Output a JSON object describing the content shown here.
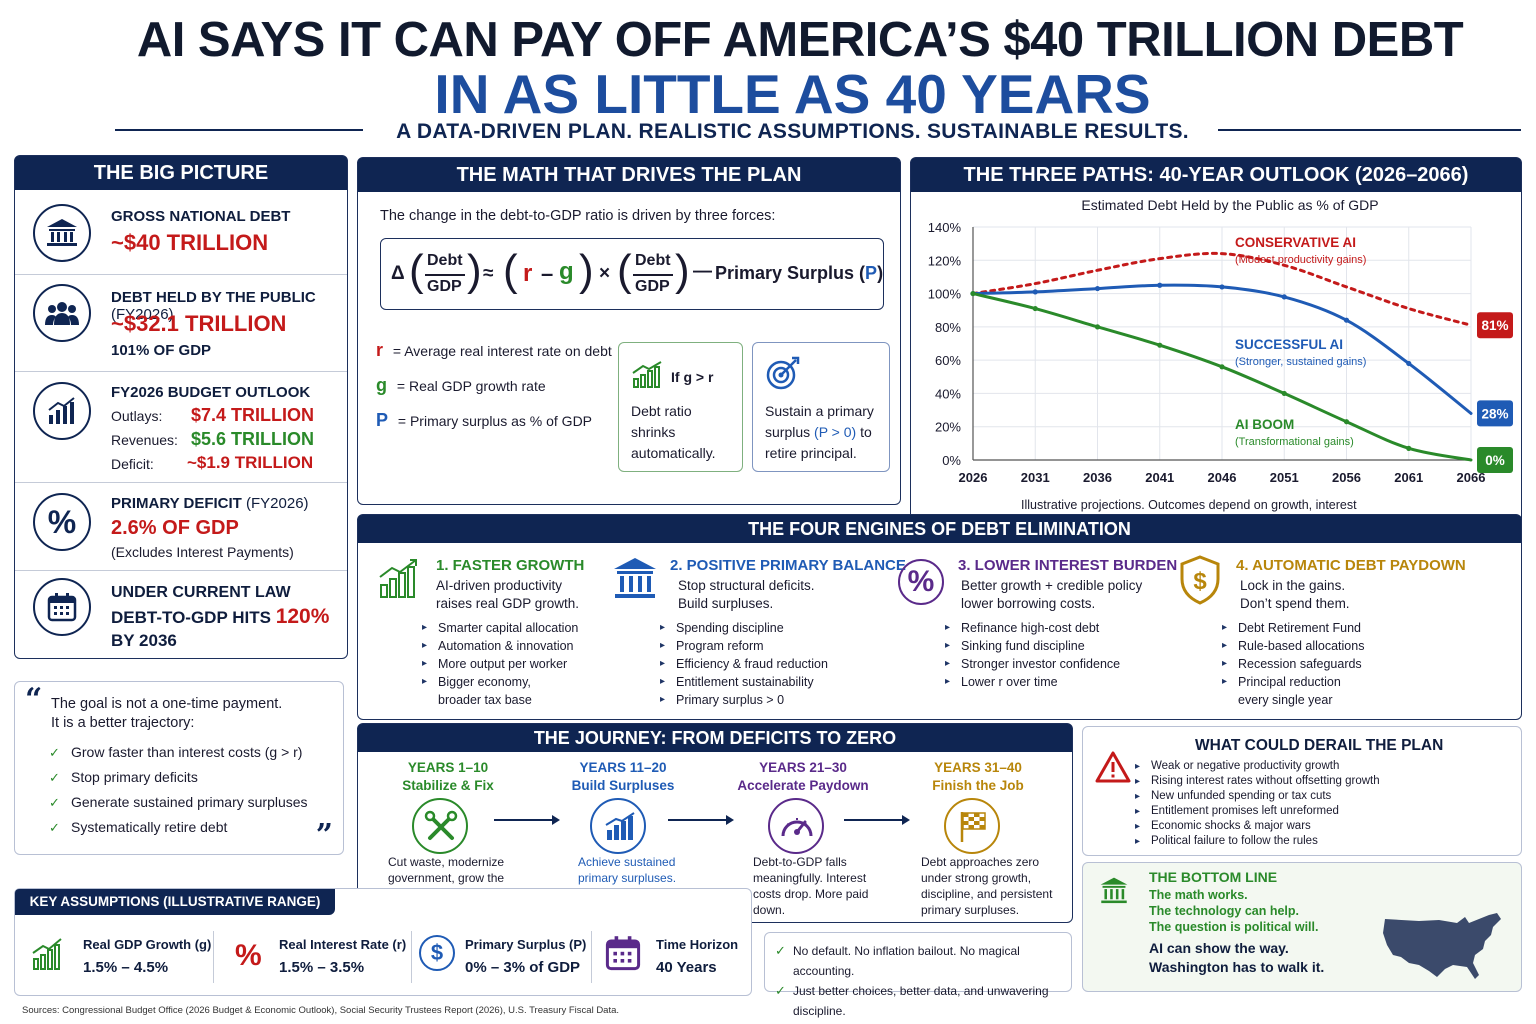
{
  "headline": {
    "line1": "AI SAYS IT CAN PAY OFF AMERICA’S $40 TRILLION DEBT",
    "line2": "IN AS LITTLE AS 40 YEARS",
    "tagline": "A DATA-DRIVEN PLAN.  REALISTIC ASSUMPTIONS.  SUSTAINABLE RESULTS."
  },
  "big_picture": {
    "header": "THE BIG PICTURE",
    "gross": {
      "title": "GROSS NATIONAL DEBT",
      "value": "~$40 TRILLION"
    },
    "public": {
      "title": "DEBT HELD BY THE PUBLIC",
      "title_suffix": "(FY2026)",
      "value": "~$32.1 TRILLION",
      "sub": "101% OF GDP"
    },
    "budget": {
      "title": "FY2026 BUDGET OUTLOOK",
      "outlays_label": "Outlays:",
      "outlays": "$7.4 TRILLION",
      "revenues_label": "Revenues:",
      "revenues": "$5.6 TRILLION",
      "deficit_label": "Deficit:",
      "deficit": "~$1.9 TRILLION"
    },
    "primary": {
      "title": "PRIMARY DEFICIT",
      "title_suffix": "(FY2026)",
      "value": "2.6% OF GDP",
      "sub": "(Excludes Interest Payments)"
    },
    "law": {
      "title": "UNDER CURRENT LAW",
      "line2a": "DEBT-TO-GDP HITS",
      "line2b": "120%",
      "line3": "BY 2036"
    }
  },
  "quote": {
    "line1": "The goal is not a one-time payment.",
    "line2": "It is a better trajectory:",
    "items": [
      "Grow faster than interest costs (g > r)",
      "Stop primary deficits",
      "Generate sustained primary surpluses",
      "Systematically retire debt"
    ]
  },
  "math": {
    "header": "THE MATH THAT DRIVES THE PLAN",
    "intro": "The change in the debt-to-GDP ratio is driven by three forces:",
    "formula": {
      "delta": "Δ",
      "debt": "Debt",
      "gdp": "GDP",
      "approx": "≈",
      "r": "r",
      "minus": "–",
      "g": "g",
      "times": "×",
      "dash": "—",
      "ps": "Primary Surplus (",
      "p": "P",
      "close": ")"
    },
    "defs": [
      {
        "sym": "r",
        "text": "= Average real interest rate on debt"
      },
      {
        "sym": "g",
        "text": "= Real GDP growth rate"
      },
      {
        "sym": "P",
        "text": "= Primary surplus as % of GDP"
      }
    ],
    "box1": {
      "title": "If g > r",
      "text": "Debt ratio shrinks automatically."
    },
    "box2": {
      "text_a": "Sustain a primary surplus ",
      "text_b": "(P > 0)",
      "text_c": " to retire principal."
    }
  },
  "paths": {
    "header": "THE THREE PATHS: 40-YEAR OUTLOOK (2026–2066)",
    "note": "Illustrative projections. Outcomes depend on growth, interest rates, policy choices, and fiscal discipline."
  },
  "chart_data": {
    "type": "line",
    "title": "Estimated Debt Held by the Public as % of GDP",
    "x": [
      2026,
      2031,
      2036,
      2041,
      2046,
      2051,
      2056,
      2061,
      2066
    ],
    "ylim": [
      0,
      140
    ],
    "yticks": [
      "0%",
      "20%",
      "40%",
      "60%",
      "80%",
      "100%",
      "120%",
      "140%"
    ],
    "grid": true,
    "series": [
      {
        "name": "CONSERVATIVE AI",
        "note": "(Modest productivity gains)",
        "color": "#c41a1a",
        "dashed": true,
        "end_label": "81%",
        "values": [
          100,
          106,
          114,
          121,
          124,
          117,
          104,
          91,
          81
        ]
      },
      {
        "name": "SUCCESSFUL AI",
        "note": "(Stronger, sustained gains)",
        "color": "#1f5bb5",
        "dashed": false,
        "end_label": "28%",
        "values": [
          100,
          101,
          103,
          105,
          104,
          98,
          84,
          58,
          28
        ]
      },
      {
        "name": "AI BOOM",
        "note": "(Transformational gains)",
        "color": "#2a8a2a",
        "dashed": false,
        "end_label": "0%",
        "values": [
          100,
          91,
          80,
          69,
          56,
          40,
          23,
          7,
          0
        ]
      }
    ]
  },
  "engines": {
    "header": "THE FOUR ENGINES OF DEBT ELIMINATION",
    "items": [
      {
        "title": "1. FASTER GROWTH",
        "desc": "AI-driven productivity raises real GDP growth.",
        "bullets": [
          "Smarter capital allocation",
          "Automation & innovation",
          "More output per worker",
          "Bigger economy, broader tax base"
        ],
        "color": "#2a8a2a"
      },
      {
        "title": "2. POSITIVE PRIMARY BALANCE",
        "desc": "Stop structural deficits. Build surpluses.",
        "bullets": [
          "Spending discipline",
          "Program reform",
          "Efficiency & fraud reduction",
          "Entitlement sustainability",
          "Primary surplus > 0"
        ],
        "color": "#1f5bb5"
      },
      {
        "title": "3. LOWER INTEREST BURDEN",
        "desc": "Better growth + credible policy lower borrowing costs.",
        "bullets": [
          "Refinance high-cost debt",
          "Sinking fund discipline",
          "Stronger investor confidence",
          "Lower r over time"
        ],
        "color": "#5a2a8a"
      },
      {
        "title": "4. AUTOMATIC DEBT PAYDOWN",
        "desc": "Lock in the gains. Don’t spend them.",
        "bullets": [
          "Debt Retirement Fund",
          "Rule-based allocations",
          "Recession safeguards",
          "Principal reduction every single year"
        ],
        "color": "#b8860b"
      }
    ]
  },
  "journey": {
    "header": "THE JOURNEY: FROM DEFICITS TO ZERO",
    "steps": [
      {
        "years": "YEARS 1–10",
        "name": "Stabilize & Fix",
        "text": "Cut waste, modernize government, grow the economy, end primary deficits, reach balance.",
        "color": "#2a8a2a"
      },
      {
        "years": "YEARS 11–20",
        "name": "Build Surpluses",
        "text": "Achieve sustained primary surpluses. Create automatic debt retirement fund.",
        "color": "#1f5bb5"
      },
      {
        "years": "YEARS 21–30",
        "name": "Accelerate Paydown",
        "text": "Debt-to-GDP falls meaningfully. Interest costs drop. More paid down.",
        "color": "#5a2a8a"
      },
      {
        "years": "YEARS 31–40",
        "name": "Finish the Job",
        "text": "Debt approaches zero under strong growth, discipline, and persistent primary surpluses.",
        "color": "#b8860b"
      }
    ]
  },
  "derail": {
    "header": "WHAT COULD DERAIL THE PLAN",
    "items": [
      "Weak or negative productivity growth",
      "Rising interest rates without offsetting growth",
      "New unfunded spending or tax cuts",
      "Entitlement promises left unreformed",
      "Economic shocks & major wars",
      "Political failure to follow the rules"
    ]
  },
  "bottom": {
    "header": "THE BOTTOM LINE",
    "lines": [
      "The math works.",
      "The technology can help.",
      "The question is political will."
    ],
    "close1": "AI can show the way.",
    "close2": "Washington has to walk it."
  },
  "assumptions": {
    "header": "KEY ASSUMPTIONS (ILLUSTRATIVE RANGE)",
    "items": [
      {
        "label": "Real GDP Growth (g)",
        "value": "1.5% – 4.5%"
      },
      {
        "label": "Real Interest Rate (r)",
        "value": "1.5% – 3.5%"
      },
      {
        "label": "Primary Surplus (P)",
        "value": "0% – 3% of GDP"
      },
      {
        "label": "Time Horizon",
        "value": "40 Years"
      }
    ]
  },
  "promises": [
    "No default.  No inflation bailout.  No magical accounting.",
    "Just better choices, better data, and unwavering discipline."
  ],
  "sources": "Sources: Congressional Budget Office (2026 Budget & Economic Outlook), Social Security Trustees Report (2026), U.S. Treasury Fiscal Data."
}
